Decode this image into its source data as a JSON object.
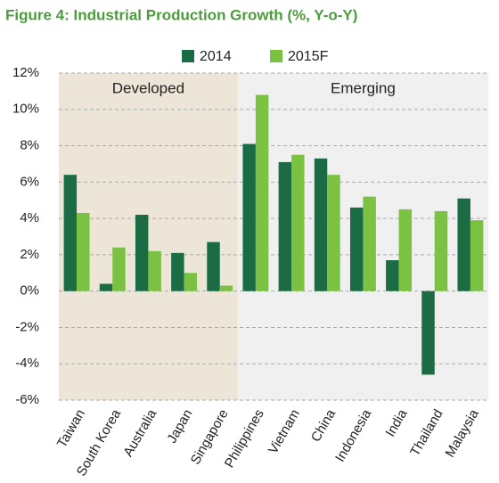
{
  "chart_data": {
    "type": "bar",
    "title": "Figure 4: Industrial Production Growth (%, Y-o-Y)",
    "annotations": [
      "Developed",
      "Emerging"
    ],
    "categories": [
      "Taiwan",
      "South Korea",
      "Australia",
      "Japan",
      "Singapore",
      "Philippines",
      "Vietnam",
      "China",
      "Indonesia",
      "India",
      "Thailand",
      "Malaysia"
    ],
    "series": [
      {
        "name": "2014",
        "color": "#1b6b45",
        "values": [
          6.4,
          0.4,
          4.2,
          2.1,
          2.7,
          8.1,
          7.1,
          7.3,
          4.6,
          1.7,
          -4.6,
          5.1
        ]
      },
      {
        "name": "2015F",
        "color": "#7cc242",
        "values": [
          4.3,
          2.4,
          2.2,
          1.0,
          0.3,
          10.8,
          7.5,
          6.4,
          5.2,
          4.5,
          4.4,
          3.9
        ]
      }
    ],
    "ylim": [
      -6,
      12
    ],
    "yticks": [
      {
        "value": -6,
        "label": "-6%"
      },
      {
        "value": -4,
        "label": "-4%"
      },
      {
        "value": -2,
        "label": "-2%"
      },
      {
        "value": 0,
        "label": "0%"
      },
      {
        "value": 2,
        "label": "2%"
      },
      {
        "value": 4,
        "label": "4%"
      },
      {
        "value": 6,
        "label": "6%"
      },
      {
        "value": 8,
        "label": "8%"
      },
      {
        "value": 10,
        "label": "10%"
      },
      {
        "value": 12,
        "label": "12%"
      }
    ],
    "grid": true,
    "legend": "top"
  }
}
